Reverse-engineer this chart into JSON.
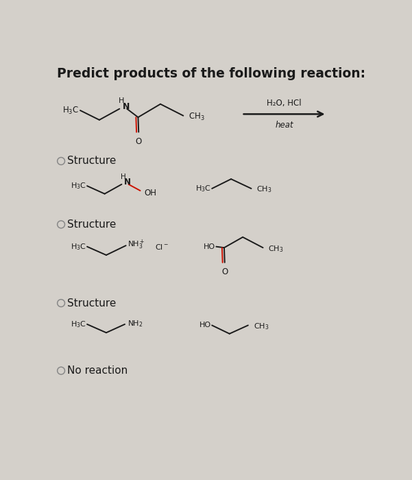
{
  "title": "Predict products of the following reaction:",
  "bg_color": "#d4d0ca",
  "text_color": "#1a1a1a",
  "structure_label": "Structure",
  "no_reaction_label": "No reaction",
  "conditions_line1": "H₂O, HCl",
  "conditions_line2": "heat",
  "bond_color": "#1a1a1a",
  "red_color": "#cc1100",
  "circle_color": "#888888"
}
